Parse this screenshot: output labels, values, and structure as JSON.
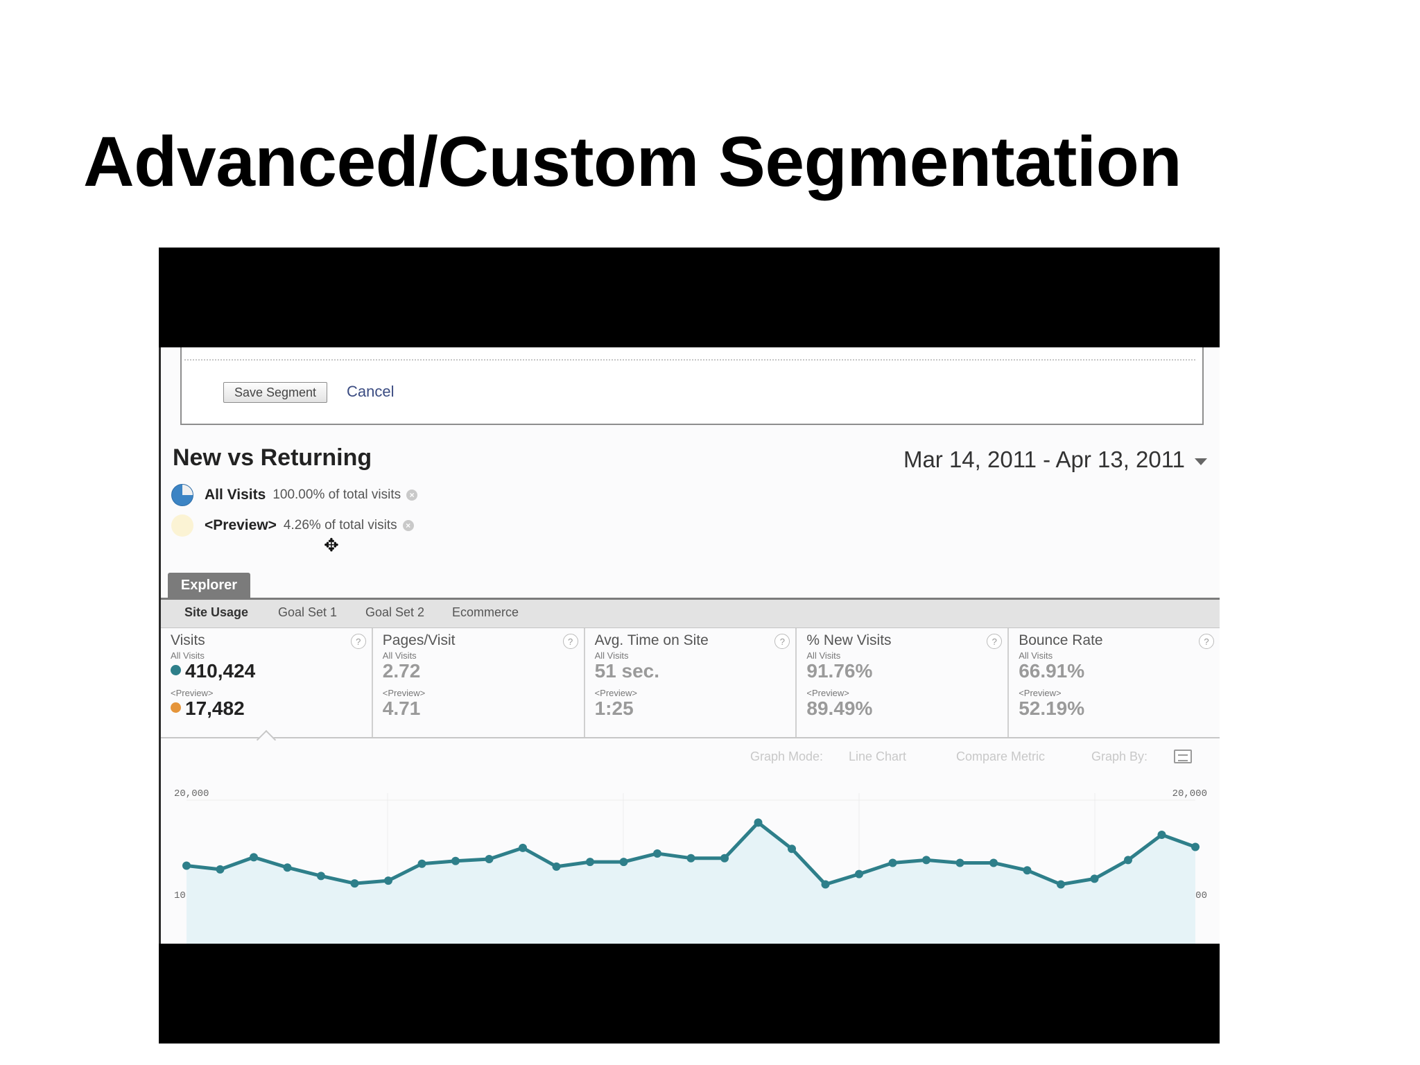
{
  "slide": {
    "title": "Advanced/Custom Segmentation"
  },
  "segment_editor": {
    "save_label": "Save Segment",
    "cancel_label": "Cancel"
  },
  "report": {
    "title": "New vs Returning",
    "date_range": "Mar 14, 2011 - Apr 13, 2011"
  },
  "segments": [
    {
      "name": "All Visits",
      "pct": "100.00% of total visits"
    },
    {
      "name": "<Preview>",
      "pct": "4.26% of total visits"
    }
  ],
  "explorer": {
    "tab": "Explorer",
    "subtabs": [
      "Site Usage",
      "Goal Set 1",
      "Goal Set 2",
      "Ecommerce"
    ]
  },
  "metrics": [
    {
      "name": "Visits",
      "all_label": "All Visits",
      "all_value": "410,424",
      "prev_label": "<Preview>",
      "prev_value": "17,482"
    },
    {
      "name": "Pages/Visit",
      "all_label": "All Visits",
      "all_value": "2.72",
      "prev_label": "<Preview>",
      "prev_value": "4.71"
    },
    {
      "name": "Avg. Time on Site",
      "all_label": "All Visits",
      "all_value": "51 sec.",
      "prev_label": "<Preview>",
      "prev_value": "1:25"
    },
    {
      "name": "% New Visits",
      "all_label": "All Visits",
      "all_value": "91.76%",
      "prev_label": "<Preview>",
      "prev_value": "89.49%"
    },
    {
      "name": "Bounce Rate",
      "all_label": "All Visits",
      "all_value": "66.91%",
      "prev_label": "<Preview>",
      "prev_value": "52.19%"
    }
  ],
  "graph_options": {
    "mode_label": "Graph Mode:",
    "mode_value": "Line Chart",
    "compare": "Compare Metric",
    "graph_by": "Graph By:"
  },
  "colors": {
    "line": "#2e7f8a",
    "area": "#e6f3f7",
    "preview_dot": "#e5953a"
  },
  "chart_data": {
    "type": "line",
    "ylim": [
      0,
      20000
    ],
    "y_ticks": [
      "20,000",
      "10,000"
    ],
    "series": [
      {
        "values": [
          13000,
          12600,
          13900,
          12800,
          11900,
          11100,
          11400,
          13200,
          13500,
          13700,
          14900,
          12900,
          13400,
          13400,
          14300,
          13800,
          13800,
          17600,
          14800,
          11000,
          12100,
          13300,
          13600,
          13300,
          13300,
          12500,
          11000,
          11600,
          13600,
          16300,
          15000
        ]
      }
    ]
  }
}
